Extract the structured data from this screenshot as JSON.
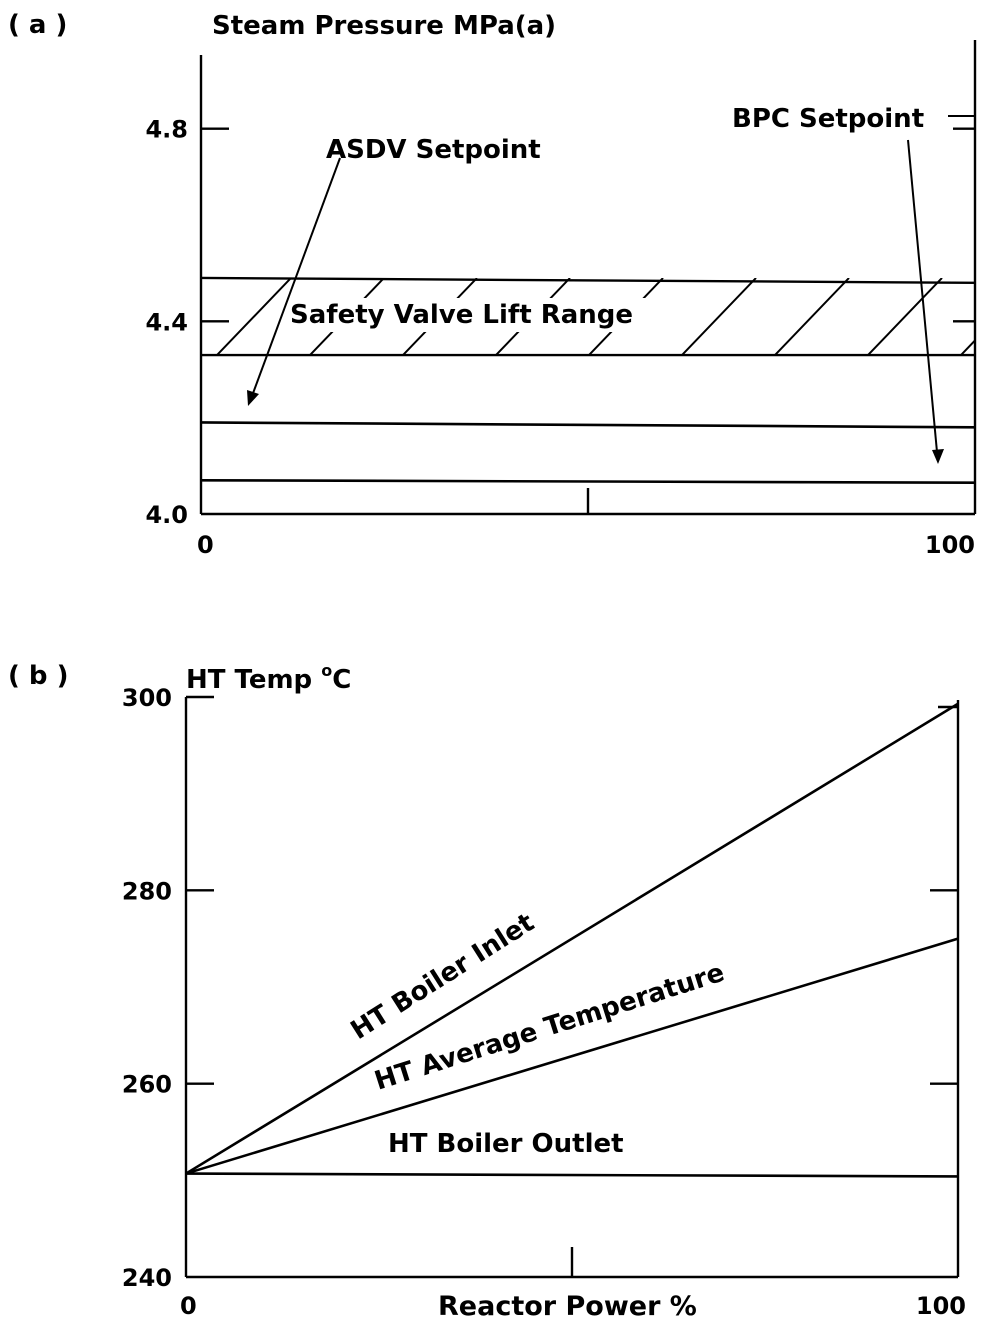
{
  "panels": {
    "a": {
      "panel_label": "( a )",
      "ylabel": "Steam Pressure MPa(a)",
      "annotations": {
        "asdv": "ASDV Setpoint",
        "bpc": "BPC Setpoint",
        "safety_band": "Safety Valve Lift Range"
      }
    },
    "b": {
      "panel_label": "( b )",
      "ylabel_main": "HT  Temp ",
      "ylabel_degree": "o",
      "ylabel_unit": "C",
      "xlabel": "Reactor  Power %",
      "line_labels": {
        "inlet": "HT Boiler Inlet",
        "average": "HT Average Temperature",
        "outlet": "HT Boiler Outlet"
      }
    }
  },
  "chart_data": [
    {
      "type": "line",
      "id": "a",
      "ylabel": "Steam Pressure MPa(a)",
      "xlim": [
        0,
        100
      ],
      "ylim": [
        4.0,
        4.9
      ],
      "yticks": [
        4.0,
        4.4,
        4.8
      ],
      "ytick_labels": [
        "4.0",
        "4.4",
        "4.8"
      ],
      "xticks": [
        0,
        50,
        100
      ],
      "xtick_labels": [
        "0",
        "",
        "100"
      ],
      "series": [
        {
          "name": "ASDV Setpoint",
          "x": [
            0,
            100
          ],
          "y": [
            4.19,
            4.18
          ]
        },
        {
          "name": "BPC Setpoint",
          "x": [
            0,
            100
          ],
          "y": [
            4.07,
            4.065
          ]
        }
      ],
      "bands": [
        {
          "name": "Safety Valve Lift Range",
          "y_low": [
            4.33,
            4.33
          ],
          "y_high": [
            4.49,
            4.48
          ]
        }
      ],
      "grid": false
    },
    {
      "type": "line",
      "id": "b",
      "ylabel": "HT  Temp °C",
      "xlabel": "Reactor  Power %",
      "xlim": [
        0,
        100
      ],
      "ylim": [
        240,
        300
      ],
      "yticks": [
        240,
        260,
        280,
        300
      ],
      "ytick_labels": [
        "240",
        "260",
        "280",
        "300"
      ],
      "xticks": [
        0,
        50,
        100
      ],
      "xtick_labels": [
        "0",
        "",
        "100"
      ],
      "series": [
        {
          "name": "HT Boiler Inlet",
          "x": [
            0,
            100
          ],
          "y": [
            250.7,
            299.3
          ]
        },
        {
          "name": "HT Average Temperature",
          "x": [
            0,
            100
          ],
          "y": [
            250.7,
            275.0
          ]
        },
        {
          "name": "HT Boiler Outlet",
          "x": [
            0,
            100
          ],
          "y": [
            250.7,
            250.4
          ]
        }
      ],
      "grid": false
    }
  ]
}
